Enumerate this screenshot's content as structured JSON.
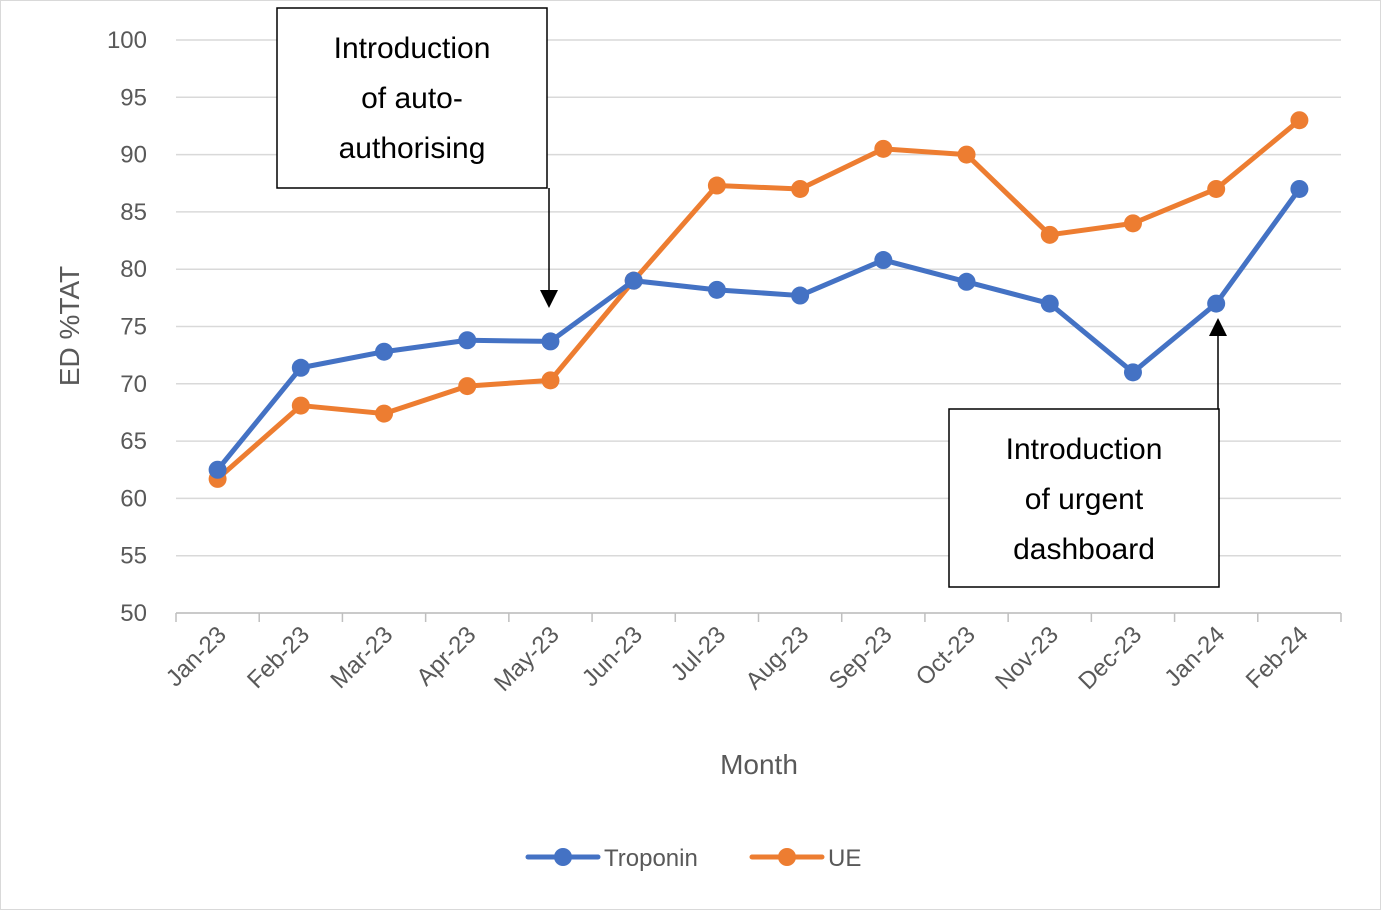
{
  "chart_data": {
    "type": "line",
    "title": "",
    "xlabel": "Month",
    "ylabel": "ED %TAT",
    "categories": [
      "Jan-23",
      "Feb-23",
      "Mar-23",
      "Apr-23",
      "May-23",
      "Jun-23",
      "Jul-23",
      "Aug-23",
      "Sep-23",
      "Oct-23",
      "Nov-23",
      "Dec-23",
      "Jan-24",
      "Feb-24"
    ],
    "ylim": [
      50,
      100
    ],
    "yticks": [
      "50",
      "55",
      "60",
      "65",
      "70",
      "75",
      "80",
      "85",
      "90",
      "95",
      "100"
    ],
    "grid": true,
    "legend_position": "bottom",
    "series": [
      {
        "name": "Troponin",
        "color": "#4472C4",
        "values": [
          62.5,
          71.4,
          72.8,
          73.8,
          73.7,
          79.0,
          78.2,
          77.7,
          80.8,
          78.9,
          77.0,
          71.0,
          77.0,
          87.0
        ]
      },
      {
        "name": "UE",
        "color": "#ED7D31",
        "values": [
          61.7,
          68.1,
          67.4,
          69.8,
          70.3,
          79.0,
          87.3,
          87.0,
          90.5,
          90.0,
          83.0,
          84.0,
          87.0,
          93.0
        ]
      }
    ],
    "annotations": [
      {
        "lines": [
          "Introduction",
          "of auto-",
          "authorising"
        ],
        "points_to": "May-23"
      },
      {
        "lines": [
          "Introduction",
          "of urgent",
          "dashboard"
        ],
        "points_to": "Jan-24"
      }
    ]
  }
}
